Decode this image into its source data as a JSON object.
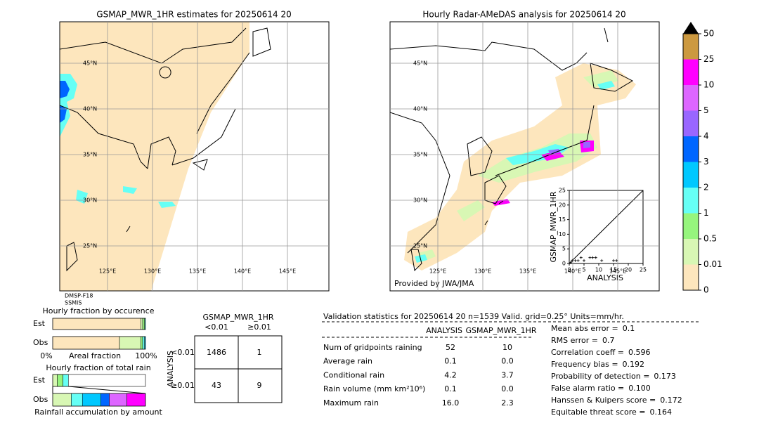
{
  "left_map": {
    "title": "GSMAP_MWR_1HR estimates for 20250614 20",
    "lat_labels": [
      "45°N",
      "40°N",
      "35°N",
      "30°N",
      "25°N"
    ],
    "lon_labels": [
      "125°E",
      "130°E",
      "135°E",
      "140°E",
      "145°E"
    ],
    "sensor": [
      "DMSP-F18",
      "SSMIS"
    ]
  },
  "right_map": {
    "title": "Hourly Radar-AMeDAS analysis for 20250614 20",
    "lat_labels": [
      "45°N",
      "40°N",
      "35°N",
      "30°N",
      "25°N"
    ],
    "lon_labels": [
      "125°E",
      "130°E",
      "135°E",
      "140°E",
      "145°E"
    ],
    "credit": "Provided by JWA/JMA"
  },
  "scatter": {
    "type": "scatter",
    "x_label": "ANALYSIS",
    "y_label": "GSMAP_MWR_1HR",
    "xlim": [
      0,
      25
    ],
    "ylim": [
      0,
      25
    ],
    "xticks": [
      0,
      5,
      10,
      15,
      20,
      25
    ],
    "yticks": [
      0,
      5,
      10,
      15,
      20,
      25
    ],
    "x": [
      0.5,
      1,
      2,
      3,
      4,
      5,
      7,
      8,
      9,
      11,
      15,
      16
    ],
    "y": [
      0.3,
      1,
      1,
      1,
      2,
      1,
      2,
      2,
      2,
      1,
      1,
      1
    ]
  },
  "colorbar": {
    "levels": [
      0,
      0.01,
      0.5,
      1,
      2,
      3,
      4,
      5,
      10,
      25,
      50
    ],
    "colors": [
      "#fde6bd",
      "#d8f7b4",
      "#96f57d",
      "#66fff5",
      "#00c8ff",
      "#0066ff",
      "#9966ff",
      "#dd66ff",
      "#ff00ff",
      "#cc9940"
    ]
  },
  "occurrence": {
    "title": "Hourly fraction by occurence",
    "rows": [
      "Est",
      "Obs"
    ],
    "segments": [
      [
        95,
        2,
        2,
        1
      ],
      [
        72,
        23,
        2,
        2,
        1
      ]
    ],
    "x_labels": [
      "0%",
      "Areal fraction",
      "100%"
    ]
  },
  "total_rain": {
    "title": "Hourly fraction of total rain",
    "rows": [
      "Est",
      "Obs"
    ],
    "segments": [
      [
        0,
        5,
        6,
        6
      ],
      [
        0,
        20,
        0,
        12,
        20,
        9,
        0,
        19,
        20
      ]
    ],
    "footer": "Rainfall accumulation by amount"
  },
  "contingency": {
    "title": "GSMAP_MWR_1HR",
    "columns": [
      "<0.01",
      "≥0.01"
    ],
    "row_title": "ANALYSIS",
    "rows": [
      "<0.01",
      "≥0.01"
    ],
    "cells": [
      [
        1486,
        1
      ],
      [
        43,
        9
      ]
    ]
  },
  "validation": {
    "header": "Validation statistics for 20250614 20  n=1539 Valid. grid=0.25° Units=mm/hr.",
    "columns": [
      "ANALYSIS",
      "GSMAP_MWR_1HR"
    ],
    "rows": [
      {
        "label": "Num of gridpoints raining",
        "values": [
          "52",
          "10"
        ]
      },
      {
        "label": "Average rain",
        "values": [
          "0.1",
          "0.0"
        ]
      },
      {
        "label": "Conditional rain",
        "values": [
          "4.2",
          "3.7"
        ]
      },
      {
        "label": "Rain volume (mm km²10⁶)",
        "values": [
          "0.1",
          "0.0"
        ]
      },
      {
        "label": "Maximum rain",
        "values": [
          "16.0",
          "2.3"
        ]
      }
    ],
    "scores": [
      {
        "label": "Mean abs error =",
        "value": "0.1"
      },
      {
        "label": "RMS error =",
        "value": "0.7"
      },
      {
        "label": "Correlation coeff =",
        "value": "0.596"
      },
      {
        "label": "Frequency bias =",
        "value": "0.192"
      },
      {
        "label": "Probability of detection =",
        "value": "0.173"
      },
      {
        "label": "False alarm ratio =",
        "value": "0.100"
      },
      {
        "label": "Hanssen & Kuipers score =",
        "value": "0.172"
      },
      {
        "label": "Equitable threat score =",
        "value": "0.164"
      }
    ]
  }
}
